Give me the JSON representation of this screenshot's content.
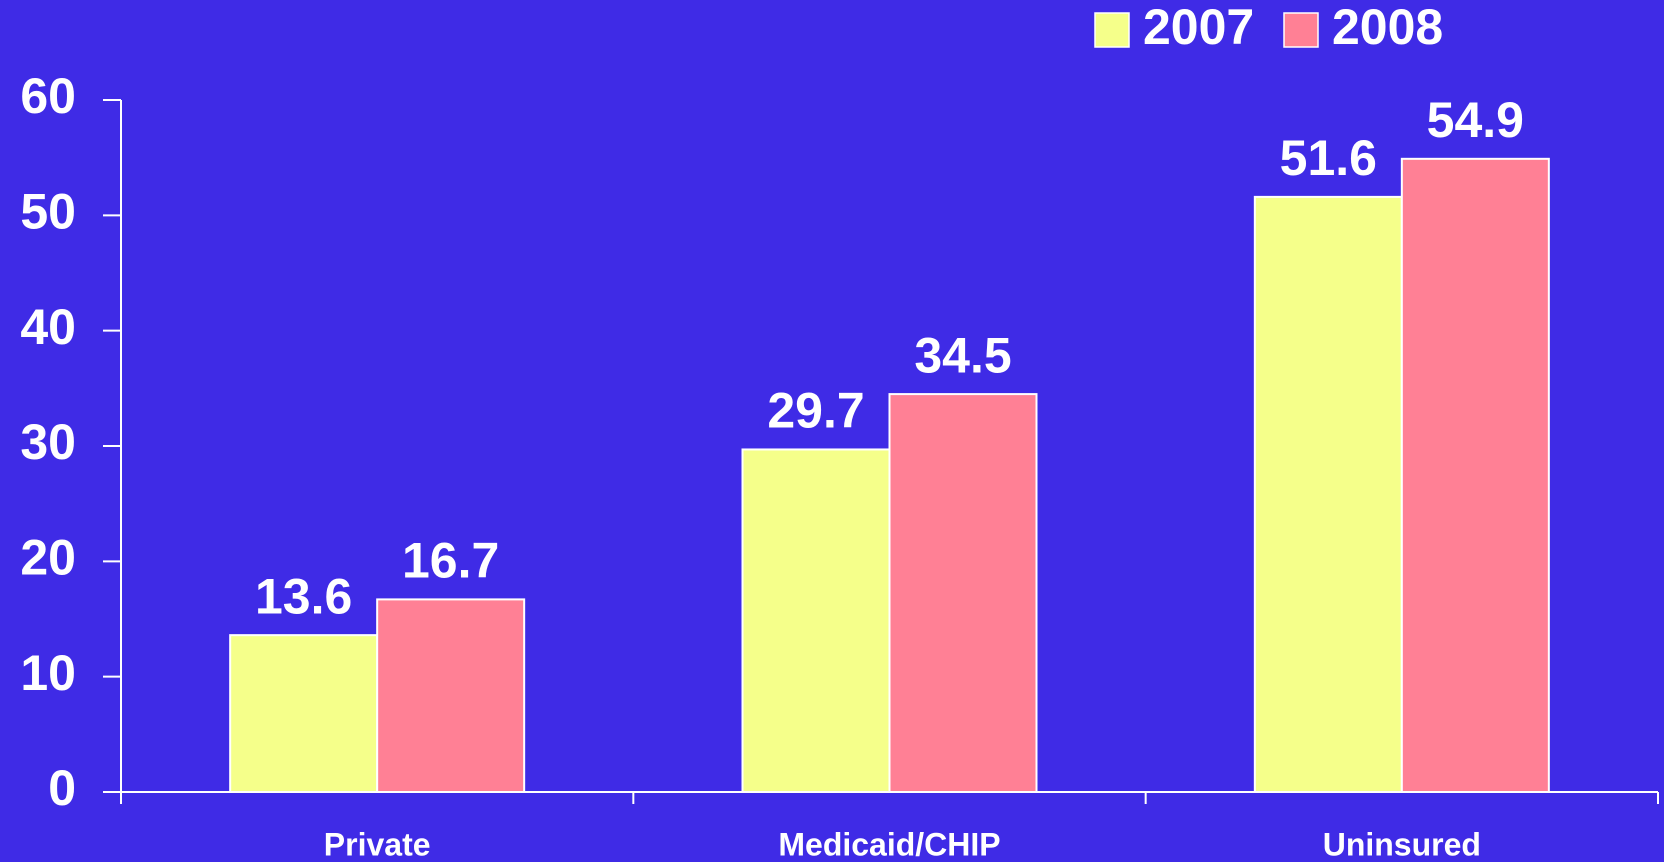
{
  "chart_data": {
    "type": "bar",
    "categories": [
      "Private",
      "Medicaid/CHIP",
      "Uninsured"
    ],
    "series": [
      {
        "name": "2007",
        "color": "#f5ff8a",
        "values": [
          13.6,
          29.7,
          51.6
        ]
      },
      {
        "name": "2008",
        "color": "#ff8095",
        "values": [
          16.7,
          34.5,
          54.9
        ]
      }
    ],
    "ylim": [
      0,
      60
    ],
    "yticks": [
      0,
      10,
      20,
      30,
      40,
      50,
      60
    ],
    "grid": false,
    "legend": "top-right"
  }
}
